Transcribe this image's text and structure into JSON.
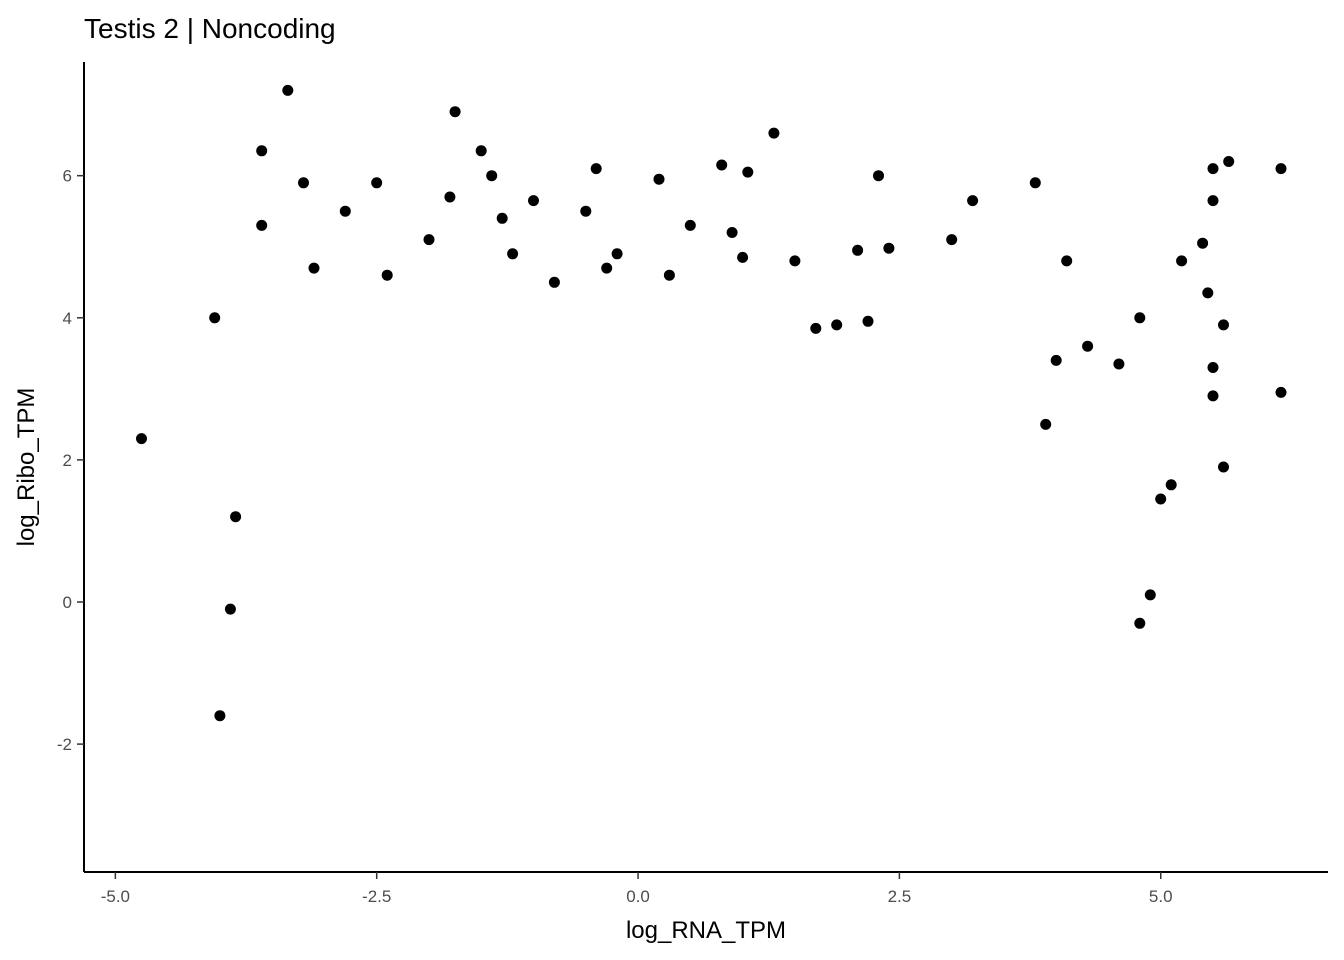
{
  "chart_data": {
    "type": "scatter",
    "title": "Testis 2 | Noncoding",
    "xlabel": "log_RNA_TPM",
    "ylabel": "log_Ribo_TPM",
    "xlim": [
      -5.3,
      6.6
    ],
    "ylim": [
      -3.8,
      7.6
    ],
    "x_ticks": [
      -5.0,
      -2.5,
      0.0,
      2.5,
      5.0
    ],
    "x_tick_labels": [
      "-5.0",
      "-2.5",
      "0.0",
      "2.5",
      "5.0"
    ],
    "y_ticks": [
      -2,
      0,
      2,
      4,
      6
    ],
    "y_tick_labels": [
      "-2",
      "0",
      "2",
      "4",
      "6"
    ],
    "grid": false,
    "point_color": "#000000",
    "x": [
      -4.75,
      -3.35,
      -1.75,
      1.3,
      -3.6,
      -1.5,
      -1.4,
      0.8,
      1.05,
      2.3,
      3.8,
      5.65,
      6.15,
      5.5,
      -4.05,
      -3.6,
      -0.4,
      2.1,
      1.5,
      1.7,
      -1.3,
      -1.2,
      2.4,
      4.1,
      4.6,
      -0.3,
      -2.8,
      -3.1,
      -2.0,
      0.2,
      -1.8,
      -3.2,
      -1.0,
      -0.5,
      0.5,
      1.9,
      2.2,
      5.5,
      5.4,
      5.2,
      5.45,
      5.6,
      6.15,
      5.5,
      5.5,
      5.6,
      -4.0,
      -3.9,
      -3.85,
      4.8,
      -2.4,
      -2.5,
      3.2,
      3.0,
      1.0,
      0.9,
      -0.8,
      -0.2,
      0.3,
      4.0,
      4.3,
      3.9,
      4.8,
      5.0,
      4.9,
      5.1
    ],
    "y": [
      2.3,
      7.2,
      6.9,
      6.6,
      6.35,
      6.35,
      6.0,
      6.15,
      6.05,
      6.0,
      5.9,
      6.2,
      6.1,
      6.1,
      4.0,
      5.3,
      6.1,
      4.95,
      4.8,
      3.85,
      5.4,
      4.9,
      4.98,
      4.8,
      3.35,
      4.7,
      5.5,
      4.7,
      5.1,
      5.95,
      5.7,
      5.9,
      5.65,
      5.5,
      5.3,
      3.9,
      3.95,
      5.65,
      5.05,
      4.8,
      4.35,
      3.9,
      2.95,
      3.3,
      2.9,
      1.9,
      -1.6,
      -0.1,
      1.2,
      -0.3,
      4.6,
      5.9,
      5.65,
      5.1,
      4.85,
      5.2,
      4.5,
      4.9,
      4.6,
      3.4,
      3.6,
      2.5,
      4.0,
      1.45,
      0.1,
      1.65
    ]
  }
}
